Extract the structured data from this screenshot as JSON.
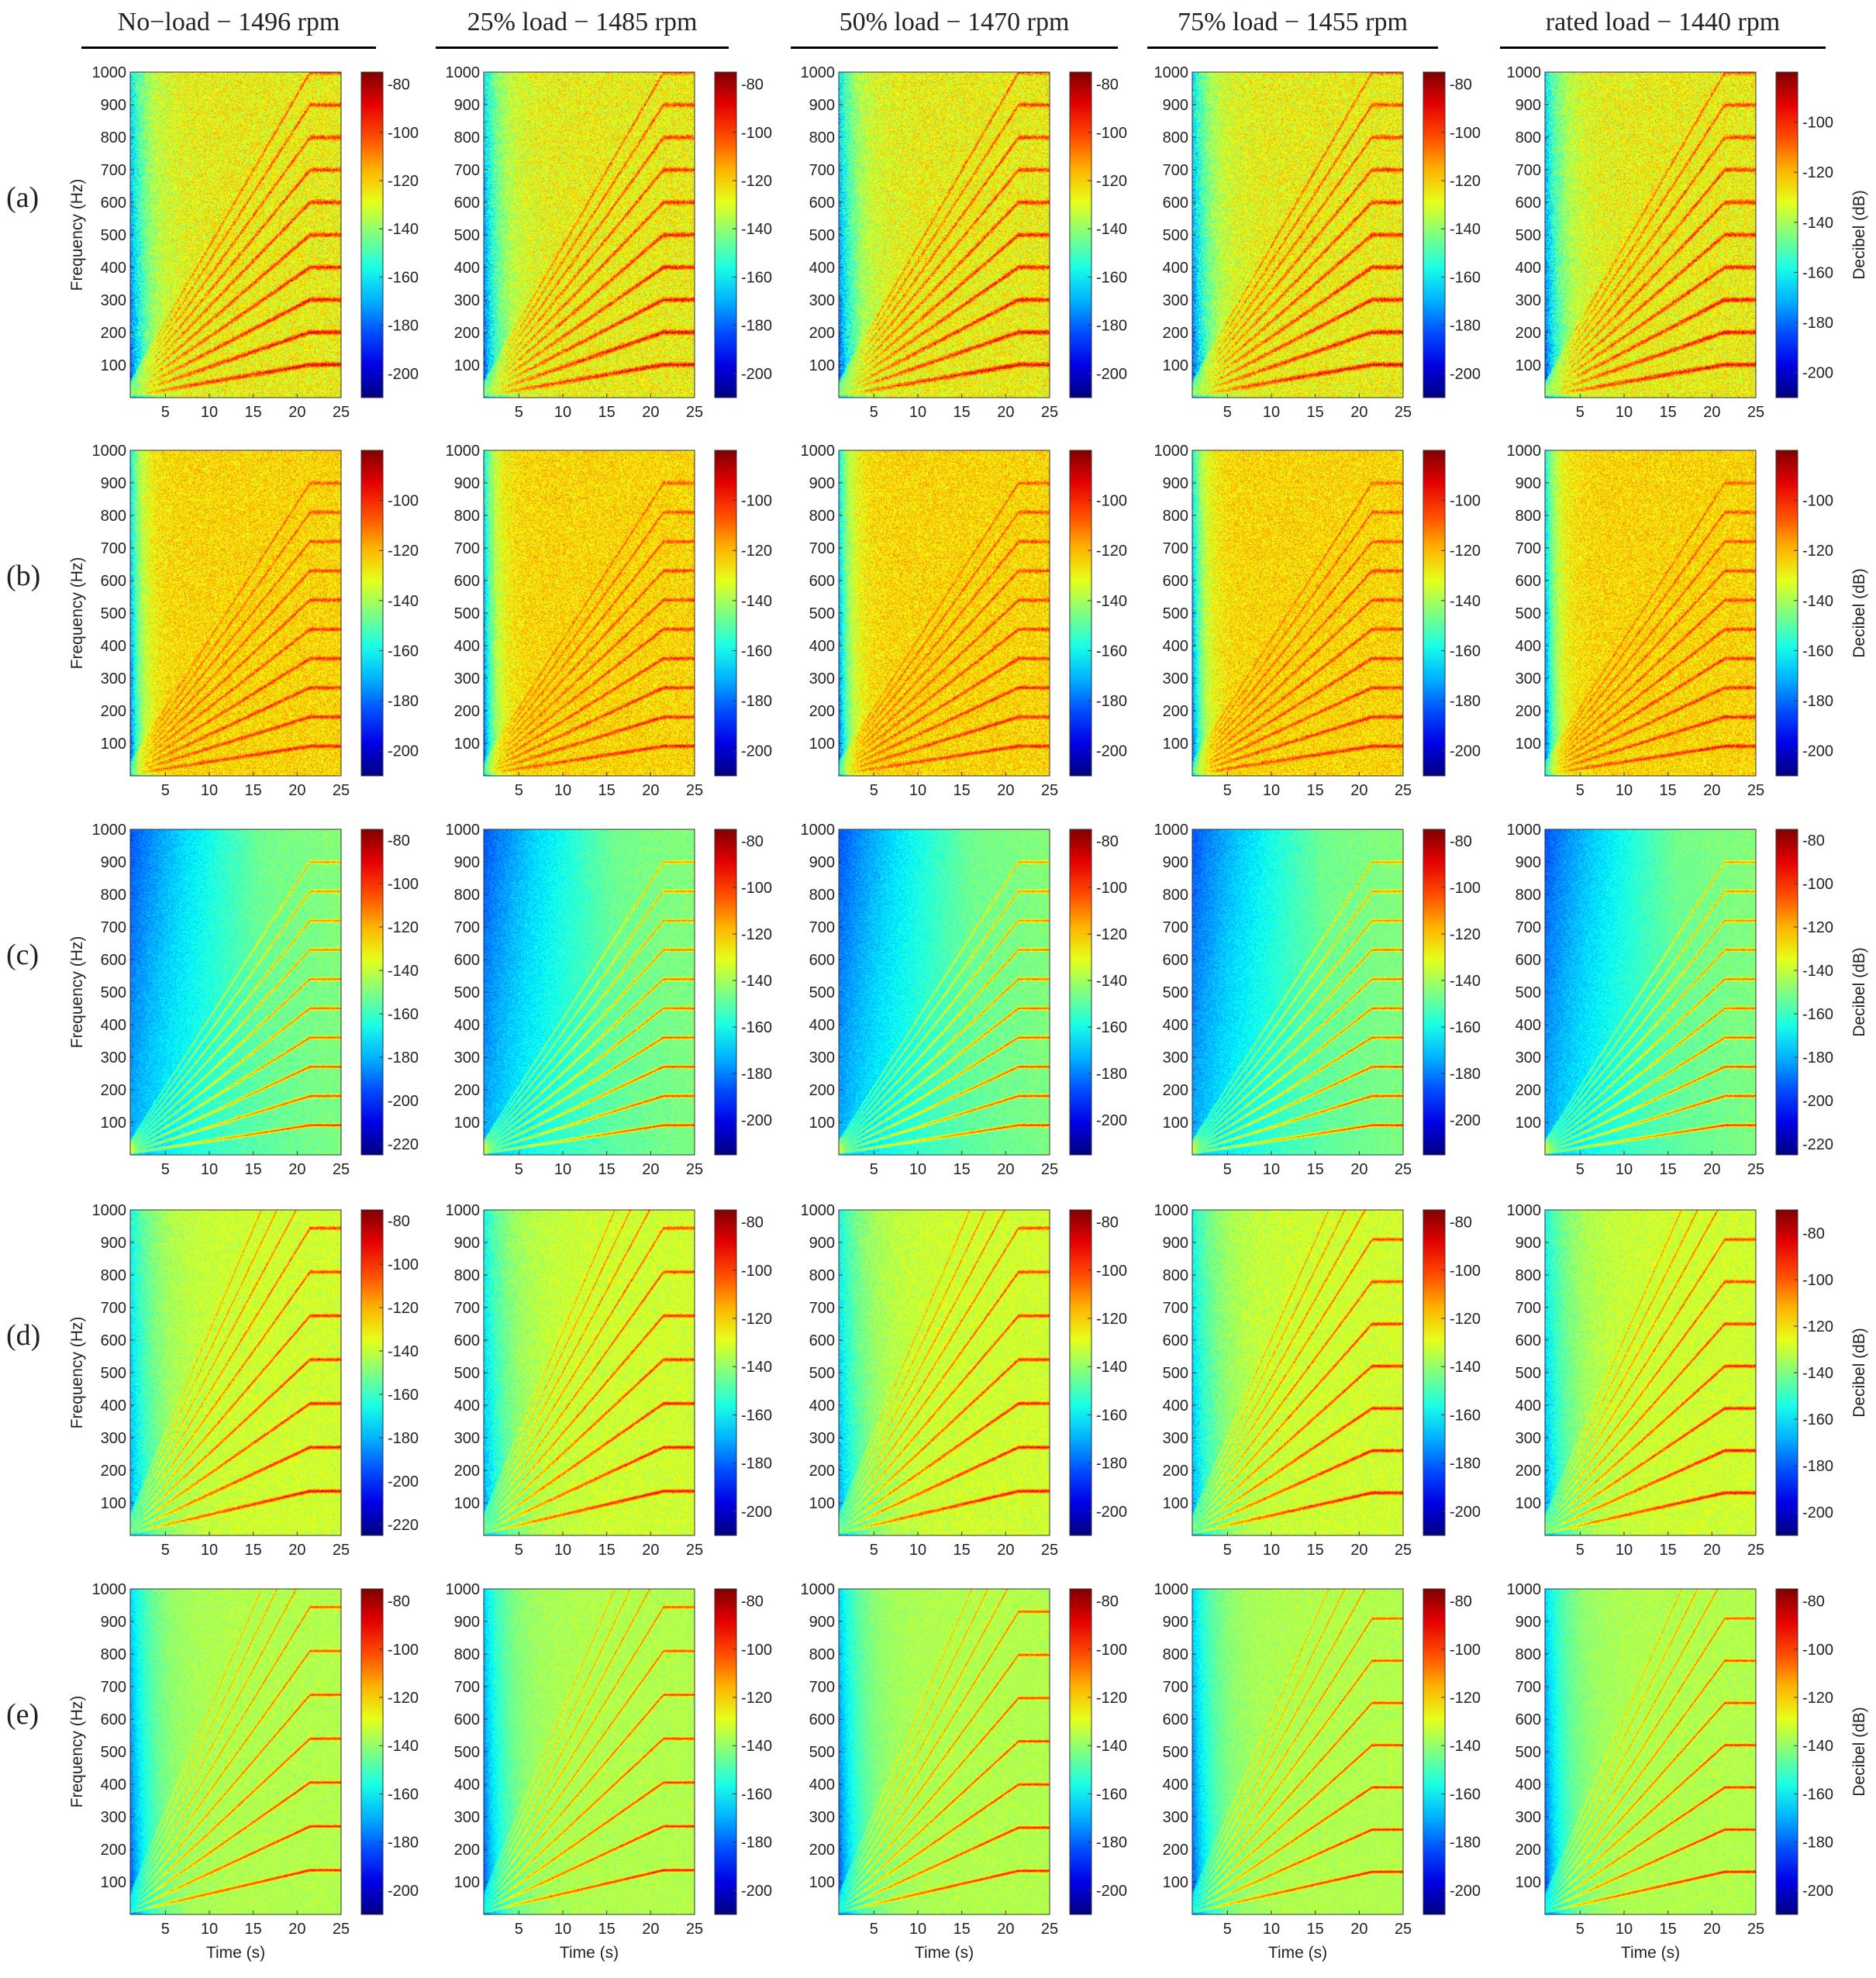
{
  "columns": [
    {
      "title": "No−load − 1496 rpm"
    },
    {
      "title": "25% load − 1485 rpm"
    },
    {
      "title": "50% load − 1470 rpm"
    },
    {
      "title": "75% load − 1455 rpm"
    },
    {
      "title": "rated load − 1440 rpm"
    }
  ],
  "rows": [
    {
      "label": "(a)"
    },
    {
      "label": "(b)"
    },
    {
      "label": "(c)"
    },
    {
      "label": "(d)"
    },
    {
      "label": "(e)"
    }
  ],
  "chart_data": {
    "type": "heatmap",
    "description_type": "spectrogram grid (5 rows x 5 columns)",
    "xlabel": "Time (s)",
    "ylabel": "Frequency (Hz)",
    "colorbar_label": "Decibel (dB)",
    "x_ticks": [
      5,
      10,
      15,
      20,
      25
    ],
    "xlim": [
      1,
      25
    ],
    "y_ticks": [
      100,
      200,
      300,
      400,
      500,
      600,
      700,
      800,
      900,
      1000
    ],
    "ylim": [
      0,
      1000
    ],
    "colormap": "jet",
    "colors": {
      "low": "#00008f",
      "high": "#800000"
    },
    "harmonic_ramp_end_time_s": 21.5,
    "panels": [
      {
        "row": "(a)",
        "col": 0,
        "cbar_ticks": [
          -200,
          -180,
          -160,
          -140,
          -120,
          -100,
          -80
        ],
        "clim": [
          -210,
          -75
        ],
        "style": "fan_dense",
        "harmonic_spacing_hz": 100
      },
      {
        "row": "(a)",
        "col": 1,
        "cbar_ticks": [
          -200,
          -180,
          -160,
          -140,
          -120,
          -100,
          -80
        ],
        "clim": [
          -210,
          -75
        ],
        "style": "fan_dense",
        "harmonic_spacing_hz": 100
      },
      {
        "row": "(a)",
        "col": 2,
        "cbar_ticks": [
          -200,
          -180,
          -160,
          -140,
          -120,
          -100,
          -80
        ],
        "clim": [
          -210,
          -75
        ],
        "style": "fan_dense",
        "harmonic_spacing_hz": 100
      },
      {
        "row": "(a)",
        "col": 3,
        "cbar_ticks": [
          -200,
          -180,
          -160,
          -140,
          -120,
          -100,
          -80
        ],
        "clim": [
          -210,
          -75
        ],
        "style": "fan_dense",
        "harmonic_spacing_hz": 100
      },
      {
        "row": "(a)",
        "col": 4,
        "cbar_ticks": [
          -200,
          -180,
          -160,
          -140,
          -120,
          -100
        ],
        "clim": [
          -210,
          -80
        ],
        "style": "fan_dense",
        "harmonic_spacing_hz": 100
      },
      {
        "row": "(b)",
        "col": 0,
        "cbar_ticks": [
          -200,
          -180,
          -160,
          -140,
          -120,
          -100
        ],
        "clim": [
          -210,
          -80
        ],
        "style": "noisy",
        "harmonic_spacing_hz": 90
      },
      {
        "row": "(b)",
        "col": 1,
        "cbar_ticks": [
          -200,
          -180,
          -160,
          -140,
          -120,
          -100
        ],
        "clim": [
          -210,
          -80
        ],
        "style": "noisy",
        "harmonic_spacing_hz": 90
      },
      {
        "row": "(b)",
        "col": 2,
        "cbar_ticks": [
          -200,
          -180,
          -160,
          -140,
          -120,
          -100
        ],
        "clim": [
          -210,
          -80
        ],
        "style": "noisy",
        "harmonic_spacing_hz": 90
      },
      {
        "row": "(b)",
        "col": 3,
        "cbar_ticks": [
          -200,
          -180,
          -160,
          -140,
          -120,
          -100
        ],
        "clim": [
          -210,
          -80
        ],
        "style": "noisy",
        "harmonic_spacing_hz": 90
      },
      {
        "row": "(b)",
        "col": 4,
        "cbar_ticks": [
          -200,
          -180,
          -160,
          -140,
          -120,
          -100
        ],
        "clim": [
          -210,
          -80
        ],
        "style": "noisy",
        "harmonic_spacing_hz": 90
      },
      {
        "row": "(c)",
        "col": 0,
        "cbar_ticks": [
          -220,
          -200,
          -180,
          -160,
          -140,
          -120,
          -100,
          -80
        ],
        "clim": [
          -225,
          -75
        ],
        "style": "clean",
        "harmonic_spacing_hz": 90
      },
      {
        "row": "(c)",
        "col": 1,
        "cbar_ticks": [
          -200,
          -180,
          -160,
          -140,
          -120,
          -100,
          -80
        ],
        "clim": [
          -215,
          -75
        ],
        "style": "clean",
        "harmonic_spacing_hz": 90
      },
      {
        "row": "(c)",
        "col": 2,
        "cbar_ticks": [
          -200,
          -180,
          -160,
          -140,
          -120,
          -100,
          -80
        ],
        "clim": [
          -215,
          -75
        ],
        "style": "clean",
        "harmonic_spacing_hz": 90
      },
      {
        "row": "(c)",
        "col": 3,
        "cbar_ticks": [
          -200,
          -180,
          -160,
          -140,
          -120,
          -100,
          -80
        ],
        "clim": [
          -215,
          -75
        ],
        "style": "clean",
        "harmonic_spacing_hz": 90
      },
      {
        "row": "(c)",
        "col": 4,
        "cbar_ticks": [
          -220,
          -200,
          -180,
          -160,
          -140,
          -120,
          -100,
          -80
        ],
        "clim": [
          -225,
          -75
        ],
        "style": "clean",
        "harmonic_spacing_hz": 90
      },
      {
        "row": "(d)",
        "col": 0,
        "cbar_ticks": [
          -220,
          -200,
          -180,
          -160,
          -140,
          -120,
          -100,
          -80
        ],
        "clim": [
          -225,
          -75
        ],
        "style": "mid",
        "harmonic_spacing_hz": 135
      },
      {
        "row": "(d)",
        "col": 1,
        "cbar_ticks": [
          -200,
          -180,
          -160,
          -140,
          -120,
          -100,
          -80
        ],
        "clim": [
          -210,
          -75
        ],
        "style": "mid",
        "harmonic_spacing_hz": 135
      },
      {
        "row": "(d)",
        "col": 2,
        "cbar_ticks": [
          -200,
          -180,
          -160,
          -140,
          -120,
          -100,
          -80
        ],
        "clim": [
          -210,
          -75
        ],
        "style": "mid",
        "harmonic_spacing_hz": 135
      },
      {
        "row": "(d)",
        "col": 3,
        "cbar_ticks": [
          -200,
          -180,
          -160,
          -140,
          -120,
          -100,
          -80
        ],
        "clim": [
          -210,
          -75
        ],
        "style": "mid",
        "harmonic_spacing_hz": 130
      },
      {
        "row": "(d)",
        "col": 4,
        "cbar_ticks": [
          -200,
          -180,
          -160,
          -140,
          -120,
          -100,
          -80
        ],
        "clim": [
          -210,
          -70
        ],
        "style": "mid",
        "harmonic_spacing_hz": 130
      },
      {
        "row": "(e)",
        "col": 0,
        "cbar_ticks": [
          -200,
          -180,
          -160,
          -140,
          -120,
          -100,
          -80
        ],
        "clim": [
          -210,
          -75
        ],
        "style": "clean_wide",
        "harmonic_spacing_hz": 135
      },
      {
        "row": "(e)",
        "col": 1,
        "cbar_ticks": [
          -200,
          -180,
          -160,
          -140,
          -120,
          -100,
          -80
        ],
        "clim": [
          -210,
          -75
        ],
        "style": "clean_wide",
        "harmonic_spacing_hz": 135
      },
      {
        "row": "(e)",
        "col": 2,
        "cbar_ticks": [
          -200,
          -180,
          -160,
          -140,
          -120,
          -100,
          -80
        ],
        "clim": [
          -210,
          -75
        ],
        "style": "clean_wide",
        "harmonic_spacing_hz": 133
      },
      {
        "row": "(e)",
        "col": 3,
        "cbar_ticks": [
          -200,
          -180,
          -160,
          -140,
          -120,
          -100,
          -80
        ],
        "clim": [
          -210,
          -75
        ],
        "style": "clean_wide",
        "harmonic_spacing_hz": 130
      },
      {
        "row": "(e)",
        "col": 4,
        "cbar_ticks": [
          -200,
          -180,
          -160,
          -140,
          -120,
          -100,
          -80
        ],
        "clim": [
          -210,
          -75
        ],
        "style": "clean_wide",
        "harmonic_spacing_hz": 130
      }
    ]
  }
}
